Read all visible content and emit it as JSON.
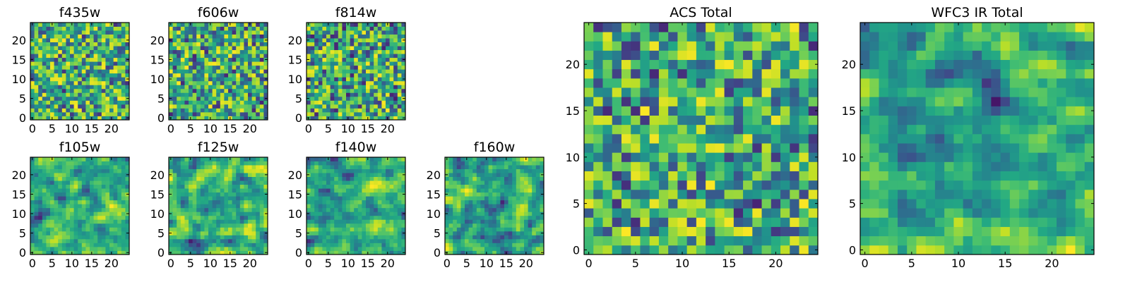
{
  "chart_data": [
    {
      "type": "heatmap",
      "title": "f435w",
      "nx": 25,
      "ny": 25,
      "xlim": [
        0,
        25
      ],
      "ylim": [
        0,
        25
      ],
      "xticks": [
        0,
        5,
        10,
        15,
        20
      ],
      "yticks": [
        0,
        5,
        10,
        15,
        20
      ],
      "colormap": "viridis",
      "seed": 435,
      "smoothing": 0,
      "bias": 0.12
    },
    {
      "type": "heatmap",
      "title": "f606w",
      "nx": 25,
      "ny": 25,
      "xlim": [
        0,
        25
      ],
      "ylim": [
        0,
        25
      ],
      "xticks": [
        0,
        5,
        10,
        15,
        20
      ],
      "yticks": [
        0,
        5,
        10,
        15,
        20
      ],
      "colormap": "viridis",
      "seed": 606,
      "smoothing": 0,
      "bias": 0.1
    },
    {
      "type": "heatmap",
      "title": "f814w",
      "nx": 25,
      "ny": 25,
      "xlim": [
        0,
        25
      ],
      "ylim": [
        0,
        25
      ],
      "xticks": [
        0,
        5,
        10,
        15,
        20
      ],
      "yticks": [
        0,
        5,
        10,
        15,
        20
      ],
      "colormap": "viridis",
      "seed": 814,
      "smoothing": 0,
      "bias": 0.08
    },
    {
      "type": "heatmap",
      "title": "f105w",
      "nx": 25,
      "ny": 25,
      "xlim": [
        0,
        25
      ],
      "ylim": [
        0,
        25
      ],
      "xticks": [
        0,
        5,
        10,
        15,
        20
      ],
      "yticks": [
        0,
        5,
        10,
        15,
        20
      ],
      "colormap": "viridis",
      "seed": 105,
      "smoothing": 1,
      "bias": 0.1
    },
    {
      "type": "heatmap",
      "title": "f125w",
      "nx": 25,
      "ny": 25,
      "xlim": [
        0,
        25
      ],
      "ylim": [
        0,
        25
      ],
      "xticks": [
        0,
        5,
        10,
        15,
        20
      ],
      "yticks": [
        0,
        5,
        10,
        15,
        20
      ],
      "colormap": "viridis",
      "seed": 125,
      "smoothing": 1,
      "bias": 0.08
    },
    {
      "type": "heatmap",
      "title": "f140w",
      "nx": 25,
      "ny": 25,
      "xlim": [
        0,
        25
      ],
      "ylim": [
        0,
        25
      ],
      "xticks": [
        0,
        5,
        10,
        15,
        20
      ],
      "yticks": [
        0,
        5,
        10,
        15,
        20
      ],
      "colormap": "viridis",
      "seed": 140,
      "smoothing": 1,
      "bias": 0.12
    },
    {
      "type": "heatmap",
      "title": "f160w",
      "nx": 25,
      "ny": 25,
      "xlim": [
        0,
        25
      ],
      "ylim": [
        0,
        25
      ],
      "xticks": [
        0,
        5,
        10,
        15,
        20
      ],
      "yticks": [
        0,
        5,
        10,
        15,
        20
      ],
      "colormap": "viridis",
      "seed": 160,
      "smoothing": 1,
      "bias": 0.1
    },
    {
      "type": "heatmap",
      "title": "ACS Total",
      "nx": 25,
      "ny": 25,
      "xlim": [
        0,
        25
      ],
      "ylim": [
        0,
        25
      ],
      "xticks": [
        0,
        5,
        10,
        15,
        20
      ],
      "yticks": [
        0,
        5,
        10,
        15,
        20
      ],
      "colormap": "viridis",
      "seed": 777,
      "smoothing": 0,
      "bias": 0.1
    },
    {
      "type": "heatmap",
      "title": "WFC3 IR Total",
      "nx": 25,
      "ny": 25,
      "xlim": [
        0,
        25
      ],
      "ylim": [
        0,
        25
      ],
      "xticks": [
        0,
        5,
        10,
        15,
        20
      ],
      "yticks": [
        0,
        5,
        10,
        15,
        20
      ],
      "colormap": "viridis",
      "seed": 999,
      "smoothing": 1,
      "bias": 0.06
    }
  ]
}
